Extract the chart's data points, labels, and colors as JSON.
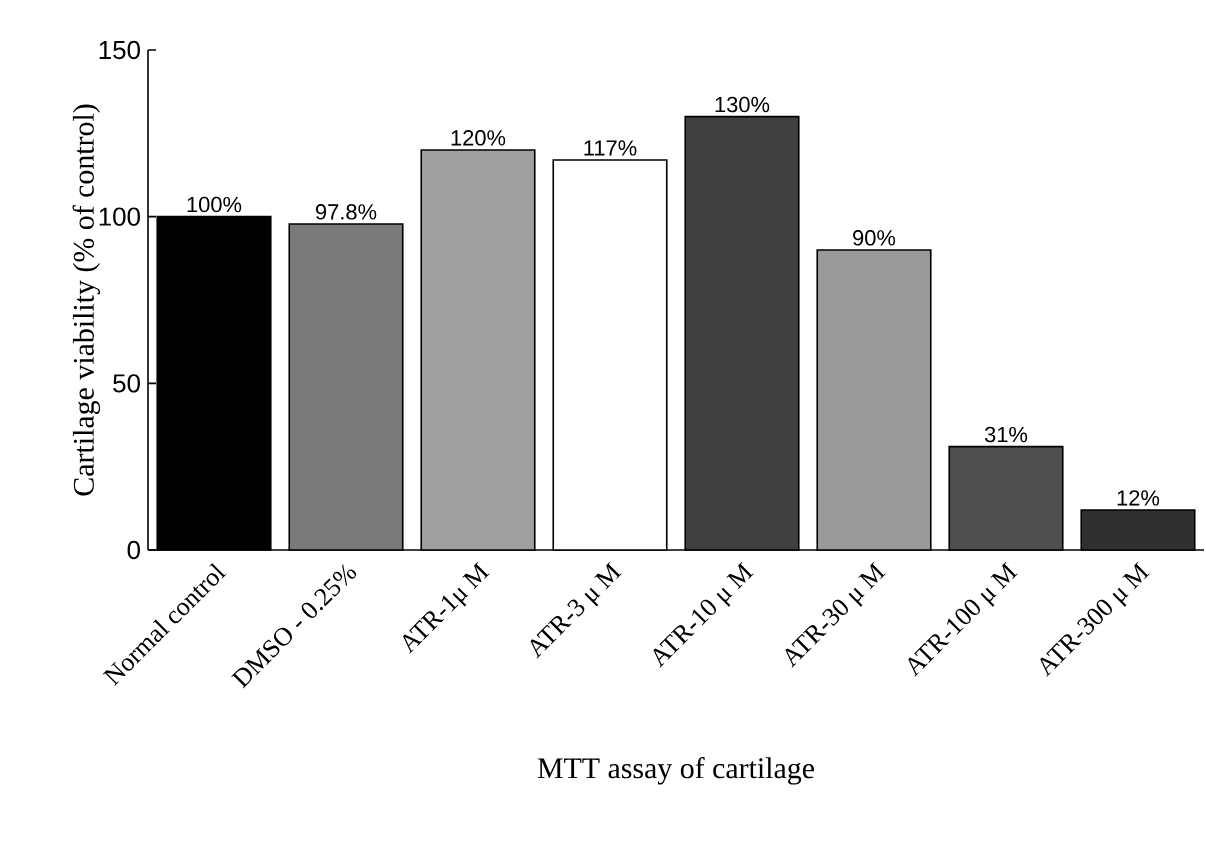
{
  "chart_data": {
    "type": "bar",
    "xlabel": "MTT assay of cartilage",
    "ylabel": "Cartilage viability (% of control)",
    "categories": [
      "Normal control",
      "DMSO - 0.25%",
      "ATR-1μ M",
      "ATR-3 μ M",
      "ATR-10 μ M",
      "ATR-30 μ M",
      "ATR-100 μ M",
      "ATR-300 μ M"
    ],
    "values": [
      100,
      97.8,
      120,
      117,
      130,
      90,
      31,
      12
    ],
    "value_labels": [
      "100%",
      "97.8%",
      "120%",
      "117%",
      "130%",
      "90%",
      "31%",
      "12%"
    ],
    "colors": [
      "#000000",
      "#7a7a7a",
      "#a0a0a0",
      "#ffffff",
      "#404040",
      "#9a9a9a",
      "#505050",
      "#303030"
    ],
    "ylim": [
      0,
      150
    ],
    "yticks": [
      0,
      50,
      100,
      150
    ]
  }
}
